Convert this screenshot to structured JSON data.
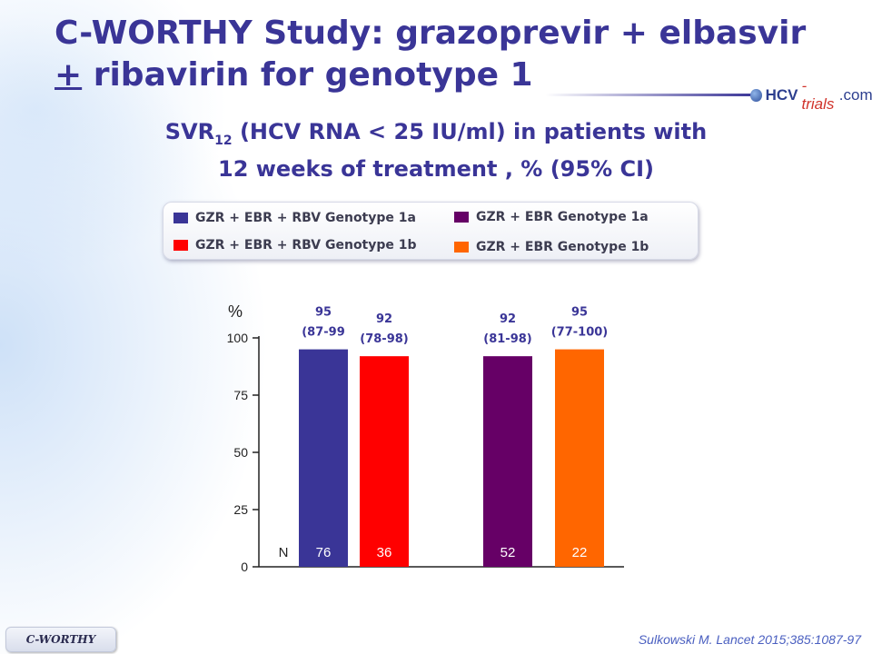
{
  "slide": {
    "title_line1": "C-WORTHY Study: grazoprevir + elbasvir",
    "title_pm": "+",
    "title_line2_rest": " ribavirin for genotype 1",
    "brand_a": "HCV",
    "brand_b": "-trials",
    "brand_c": ".com",
    "subtitle_svr": "SVR",
    "subtitle_sub": "12",
    "subtitle_rest": " (HCV RNA < 25 IU/ml) in patients with",
    "subtitle_line2": "12 weeks of treatment , % (95% CI)",
    "footer_tag": "C-WORTHY",
    "citation": "Sulkowski M. Lancet 2015;385:1087-97"
  },
  "legend": [
    {
      "label": "GZR + EBR + RBV Genotype 1a",
      "color": "#3a3597"
    },
    {
      "label": "GZR + EBR Genotype 1a",
      "color": "#660066"
    },
    {
      "label": "GZR + EBR  + RBV Genotype 1b",
      "color": "#ff0000"
    },
    {
      "label": "GZR + EBR Genotype 1b",
      "color": "#ff6600"
    }
  ],
  "chart_data": {
    "type": "bar",
    "ylabel": "%",
    "ylim": [
      0,
      100
    ],
    "yticks": [
      0,
      25,
      50,
      75,
      100
    ],
    "n_label": "N",
    "bars": [
      {
        "value": 95,
        "label": "95",
        "ci": "(87-99",
        "n": "76",
        "color": "#3a3597"
      },
      {
        "value": 92,
        "label": "92",
        "ci": "(78-98)",
        "n": "36",
        "color": "#ff0000"
      },
      {
        "value": 92,
        "label": "92",
        "ci": "(81-98)",
        "n": "52",
        "color": "#660066"
      },
      {
        "value": 95,
        "label": "95",
        "ci": "(77-100)",
        "n": "22",
        "color": "#ff6600"
      }
    ]
  }
}
